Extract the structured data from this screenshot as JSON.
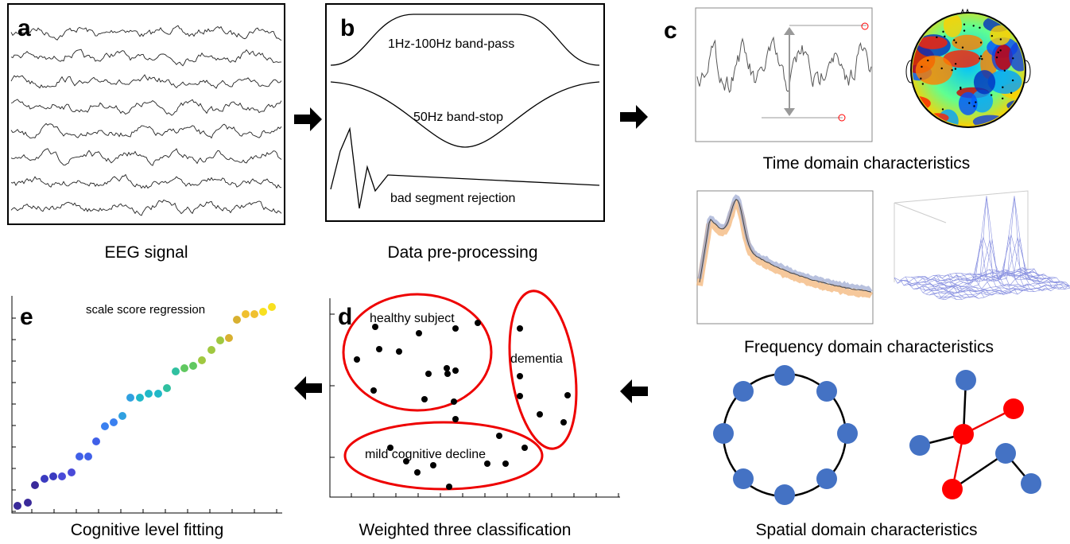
{
  "eeg": {
    "letter": "a",
    "caption": "EEG signal"
  },
  "preprocessing": {
    "letter": "b",
    "bandpass": "1Hz-100Hz band-pass",
    "bandstop": "50Hz band-stop",
    "rejection": "bad segment rejection",
    "caption": "Data pre-processing"
  },
  "features": {
    "letter": "c",
    "time_caption": "Time domain characteristics",
    "frequency_caption": "Frequency domain characteristics",
    "spatial_caption": "Spatial domain characteristics"
  },
  "classification": {
    "letter": "d",
    "groups": [
      "healthy subject",
      "dementia",
      "mild cognitive decline"
    ],
    "caption": "Weighted three classification"
  },
  "fitting": {
    "letter": "e",
    "label": "scale score regression",
    "caption": "Cognitive level fitting"
  }
}
